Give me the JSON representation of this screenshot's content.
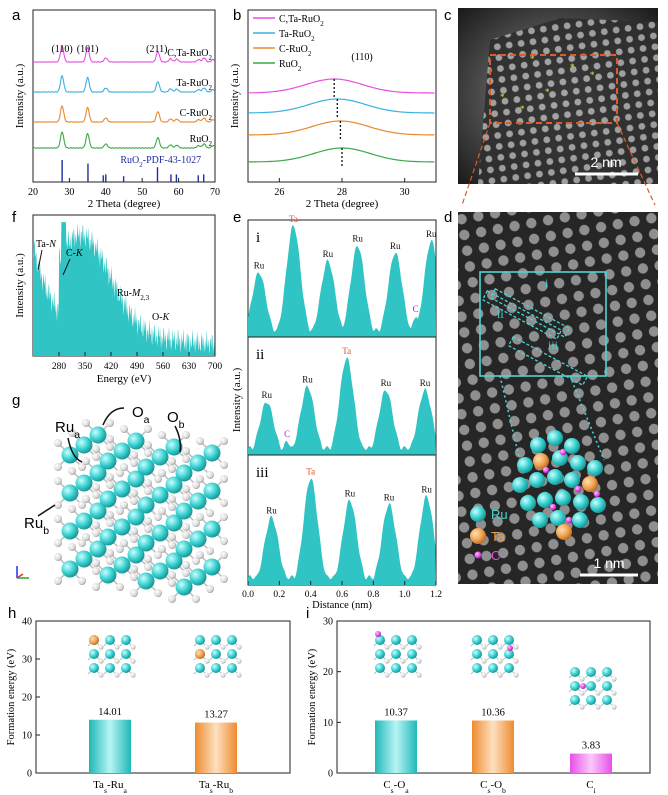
{
  "panel_letters": {
    "a": "a",
    "b": "b",
    "c": "c",
    "d": "d",
    "e": "e",
    "f": "f",
    "g": "g",
    "h": "h",
    "i": "i"
  },
  "chart_data": [
    {
      "id": "a",
      "type": "line",
      "title": "",
      "xlabel": "2 Theta (degree)",
      "ylabel": "Intensity (a.u.)",
      "xlim": [
        20,
        70
      ],
      "xticks": [
        20,
        30,
        40,
        50,
        60,
        70
      ],
      "peak_labels": [
        "(110)",
        "(101)",
        "(211)"
      ],
      "peak_positions": [
        28,
        35,
        54
      ],
      "series": [
        {
          "name": "C,Ta-RuO2",
          "label": "C,Ta-RuO",
          "sub": "2",
          "color": "#e64fe0",
          "offset": 4
        },
        {
          "name": "Ta-RuO2",
          "label": "Ta-RuO",
          "sub": "2",
          "color": "#3ab0e0",
          "offset": 3
        },
        {
          "name": "C-RuO2",
          "label": "C-RuO",
          "sub": "2",
          "color": "#e8892b",
          "offset": 2
        },
        {
          "name": "RuO2",
          "label": "RuO",
          "sub": "2",
          "color": "#3aa84a",
          "offset": 1
        }
      ],
      "reference": {
        "label": "RuO",
        "sub": "2",
        "suffix": "-PDF-43-1027",
        "color": "#1f2f9e",
        "positions": [
          28.0,
          35.1,
          39.3,
          40.0,
          44.9,
          54.2,
          57.9,
          59.4,
          65.4,
          66.9
        ],
        "heights": [
          1.0,
          0.8,
          0.15,
          0.2,
          0.1,
          0.6,
          0.2,
          0.2,
          0.15,
          0.2
        ]
      }
    },
    {
      "id": "b",
      "type": "line",
      "xlabel": "2 Theta (degree)",
      "ylabel": "Intensity (a.u.)",
      "xlim": [
        25,
        31
      ],
      "xticks": [
        26,
        28,
        30
      ],
      "peak_label": "(110)",
      "legend": [
        {
          "label": "C,Ta-RuO",
          "sub": "2",
          "color": "#e64fe0"
        },
        {
          "label": "Ta-RuO",
          "sub": "2",
          "color": "#3ab0e0"
        },
        {
          "label": "C-RuO",
          "sub": "2",
          "color": "#e8892b"
        },
        {
          "label": "RuO",
          "sub": "2",
          "color": "#3aa84a"
        }
      ],
      "series": [
        {
          "name": "Ta-RuO2",
          "color": "#3ab0e0",
          "center": 27.85,
          "offset": 3
        },
        {
          "name": "C,Ta-RuO2",
          "color": "#e64fe0",
          "center": 27.75,
          "offset": 3.4
        },
        {
          "name": "C-RuO2",
          "color": "#e8892b",
          "center": 27.95,
          "offset": 2
        },
        {
          "name": "RuO2",
          "color": "#3aa84a",
          "center": 28.0,
          "offset": 1
        }
      ]
    },
    {
      "id": "f",
      "type": "area",
      "xlabel": "Energy (eV)",
      "ylabel": "Intensity (a.u.)",
      "xlim": [
        210,
        700
      ],
      "xticks": [
        280,
        350,
        420,
        490,
        560,
        630,
        700
      ],
      "color": "#31c4c4",
      "annotations": [
        {
          "text": "Ta-",
          "italic": "N",
          "sub": ""
        },
        {
          "text": "C-",
          "italic": "K",
          "sub": ""
        },
        {
          "text": "Ru-",
          "italic": "M",
          "sub": "2,3"
        },
        {
          "text": "O-",
          "italic": "K",
          "sub": ""
        }
      ]
    },
    {
      "id": "e",
      "type": "area",
      "xlabel": "Distance (nm)",
      "ylabel": "Intensity  (a.u.)",
      "xlim": [
        0,
        1.2
      ],
      "xticks": [
        "0.0",
        "0.2",
        "0.4",
        "0.6",
        "0.8",
        "1.0",
        "1.2"
      ],
      "color": "#31c4c4",
      "profiles": [
        {
          "name": "i",
          "peaks": [
            {
              "x": 0.07,
              "h": 0.55,
              "label": "Ru",
              "type": "ru"
            },
            {
              "x": 0.29,
              "h": 0.95,
              "label": "Ta",
              "type": "ta"
            },
            {
              "x": 0.51,
              "h": 0.65,
              "label": "Ru",
              "type": "ru"
            },
            {
              "x": 0.7,
              "h": 0.78,
              "label": "Ru",
              "type": "ru"
            },
            {
              "x": 0.94,
              "h": 0.72,
              "label": "Ru",
              "type": "ru"
            },
            {
              "x": 1.07,
              "h": 0.18,
              "label": "C",
              "type": "c"
            },
            {
              "x": 1.17,
              "h": 0.82,
              "label": "Ru",
              "type": "ru"
            }
          ]
        },
        {
          "name": "ii",
          "peaks": [
            {
              "x": 0.12,
              "h": 0.45,
              "label": "Ru",
              "type": "ru"
            },
            {
              "x": 0.25,
              "h": 0.12,
              "label": "C",
              "type": "c"
            },
            {
              "x": 0.38,
              "h": 0.58,
              "label": "Ru",
              "type": "ru"
            },
            {
              "x": 0.63,
              "h": 0.82,
              "label": "Ta",
              "type": "ta"
            },
            {
              "x": 0.88,
              "h": 0.55,
              "label": "Ru",
              "type": "ru"
            },
            {
              "x": 1.13,
              "h": 0.55,
              "label": "Ru",
              "type": "ru"
            }
          ]
        },
        {
          "name": "iii",
          "peaks": [
            {
              "x": 0.15,
              "h": 0.52,
              "label": "Ru",
              "type": "ru"
            },
            {
              "x": 0.4,
              "h": 0.82,
              "label": "Ta",
              "type": "ta"
            },
            {
              "x": 0.65,
              "h": 0.65,
              "label": "Ru",
              "type": "ru"
            },
            {
              "x": 0.9,
              "h": 0.62,
              "label": "Ru",
              "type": "ru"
            },
            {
              "x": 1.14,
              "h": 0.68,
              "label": "Ru",
              "type": "ru"
            }
          ]
        }
      ]
    },
    {
      "id": "h",
      "type": "bar",
      "ylabel": "Formation energy (eV)",
      "ylim": [
        0,
        40
      ],
      "yticks": [
        0,
        10,
        20,
        30,
        40
      ],
      "categories": [
        {
          "main": "Ta",
          "sub": "s",
          "rest": "-Ru",
          "sub2": "a"
        },
        {
          "main": "Ta",
          "sub": "s",
          "rest": "-Ru",
          "sub2": "b"
        }
      ],
      "values": [
        14.01,
        13.27
      ],
      "value_labels": [
        "14.01",
        "13.27"
      ],
      "colors": [
        "#33cccc",
        "#f0a050"
      ]
    },
    {
      "id": "i",
      "type": "bar",
      "ylabel": "Formation energy (eV)",
      "ylim": [
        0,
        30
      ],
      "yticks": [
        0,
        10,
        20,
        30
      ],
      "categories": [
        {
          "main": "C",
          "sub": "s",
          "rest": "-O",
          "sub2": "a"
        },
        {
          "main": "C",
          "sub": "s",
          "rest": "-O",
          "sub2": "b"
        },
        {
          "main": "C",
          "sub": "i",
          "rest": "",
          "sub2": ""
        }
      ],
      "values": [
        10.37,
        10.36,
        3.83
      ],
      "value_labels": [
        "10.37",
        "10.36",
        "3.83"
      ],
      "colors": [
        "#33cccc",
        "#f0a050",
        "#ee55ee"
      ]
    }
  ],
  "images": {
    "c": {
      "scale_label": "2 nm"
    },
    "d": {
      "scale_label": "1 nm",
      "legend": [
        "Ru",
        "Ta",
        "C"
      ],
      "profile_labels": [
        "i",
        "ii",
        "iii"
      ]
    }
  },
  "structure_g": {
    "labels": [
      {
        "t": "Ru",
        "s": "a"
      },
      {
        "t": "O",
        "s": "a"
      },
      {
        "t": "O",
        "s": "b"
      },
      {
        "t": "Ru",
        "s": "b"
      }
    ]
  }
}
